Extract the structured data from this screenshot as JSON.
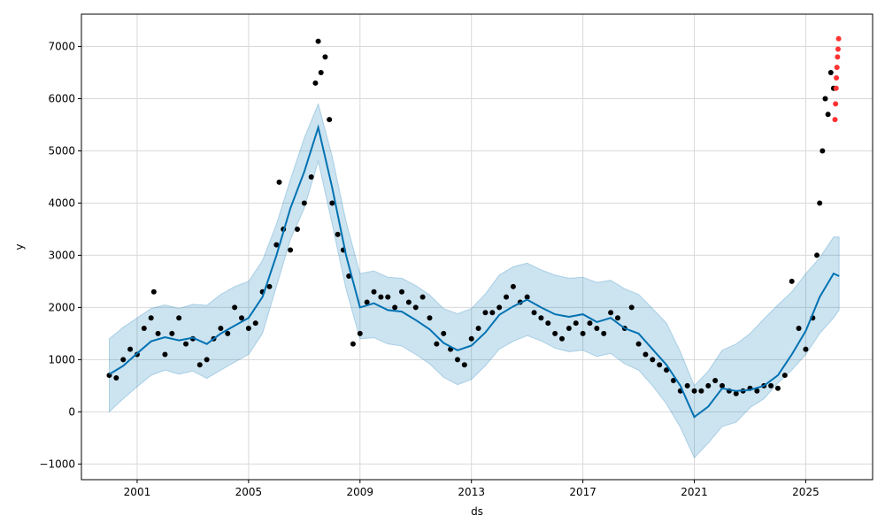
{
  "chart_data": {
    "type": "line",
    "title": "",
    "xlabel": "ds",
    "ylabel": "y",
    "xlim": [
      1999.0,
      2027.4
    ],
    "ylim": [
      -1300,
      7620
    ],
    "grid": true,
    "x_ticks": [
      2001,
      2005,
      2009,
      2013,
      2017,
      2021,
      2025
    ],
    "x_tick_labels": [
      "2001",
      "2005",
      "2009",
      "2013",
      "2017",
      "2021",
      "2025"
    ],
    "y_ticks": [
      -1000,
      0,
      1000,
      2000,
      3000,
      4000,
      5000,
      6000,
      7000
    ],
    "y_tick_labels": [
      "−1000",
      "0",
      "1000",
      "2000",
      "3000",
      "4000",
      "5000",
      "6000",
      "7000"
    ],
    "colors": {
      "forecast_line": "#0072B2",
      "uncertainty_band": "#0072B2",
      "observations": "#000000",
      "highlighted_points": "#ff3333",
      "grid": "#d9d9d9"
    },
    "series": [
      {
        "role": "forecast",
        "x": [
          2000.0,
          2000.5,
          2001.0,
          2001.5,
          2002.0,
          2002.5,
          2003.0,
          2003.5,
          2004.0,
          2004.5,
          2005.0,
          2005.5,
          2006.0,
          2006.5,
          2007.0,
          2007.5,
          2008.0,
          2008.5,
          2009.0,
          2009.5,
          2010.0,
          2010.5,
          2011.0,
          2011.5,
          2012.0,
          2012.5,
          2013.0,
          2013.5,
          2014.0,
          2014.5,
          2015.0,
          2015.5,
          2016.0,
          2016.5,
          2017.0,
          2017.5,
          2018.0,
          2018.5,
          2019.0,
          2019.5,
          2020.0,
          2020.5,
          2021.0,
          2021.5,
          2022.0,
          2022.5,
          2023.0,
          2023.5,
          2024.0,
          2024.5,
          2025.0,
          2025.5,
          2026.0,
          2026.2
        ],
        "y": [
          720,
          880,
          1120,
          1350,
          1430,
          1370,
          1420,
          1300,
          1500,
          1650,
          1800,
          2200,
          3000,
          3900,
          4600,
          5450,
          4300,
          3000,
          2000,
          2080,
          1950,
          1920,
          1760,
          1580,
          1320,
          1180,
          1270,
          1520,
          1860,
          2020,
          2150,
          2000,
          1870,
          1820,
          1870,
          1720,
          1800,
          1600,
          1500,
          1200,
          900,
          500,
          -100,
          100,
          450,
          400,
          420,
          500,
          700,
          1100,
          1550,
          2200,
          2650,
          2600
        ]
      },
      {
        "role": "uncertainty_upper",
        "x": [
          2000.0,
          2000.5,
          2001.0,
          2001.5,
          2002.0,
          2002.5,
          2003.0,
          2003.5,
          2004.0,
          2004.5,
          2005.0,
          2005.5,
          2006.0,
          2006.5,
          2007.0,
          2007.5,
          2008.0,
          2008.5,
          2009.0,
          2009.5,
          2010.0,
          2010.5,
          2011.0,
          2011.5,
          2012.0,
          2012.5,
          2013.0,
          2013.5,
          2014.0,
          2014.5,
          2015.0,
          2015.5,
          2016.0,
          2016.5,
          2017.0,
          2017.5,
          2018.0,
          2018.5,
          2019.0,
          2019.5,
          2020.0,
          2020.5,
          2021.0,
          2021.5,
          2022.0,
          2022.5,
          2023.0,
          2023.5,
          2024.0,
          2024.5,
          2025.0,
          2025.5,
          2026.0,
          2026.2
        ],
        "y": [
          1400,
          1620,
          1800,
          1980,
          2050,
          1980,
          2060,
          2040,
          2250,
          2400,
          2500,
          2900,
          3600,
          4450,
          5250,
          5900,
          4900,
          3650,
          2650,
          2700,
          2580,
          2560,
          2420,
          2240,
          1980,
          1880,
          1980,
          2260,
          2620,
          2780,
          2850,
          2720,
          2620,
          2560,
          2580,
          2480,
          2520,
          2360,
          2250,
          1980,
          1700,
          1150,
          500,
          780,
          1180,
          1300,
          1500,
          1780,
          2050,
          2300,
          2650,
          2950,
          3350,
          3350
        ]
      },
      {
        "role": "uncertainty_lower",
        "x": [
          2000.0,
          2000.5,
          2001.0,
          2001.5,
          2002.0,
          2002.5,
          2003.0,
          2003.5,
          2004.0,
          2004.5,
          2005.0,
          2005.5,
          2006.0,
          2006.5,
          2007.0,
          2007.5,
          2008.0,
          2008.5,
          2009.0,
          2009.5,
          2010.0,
          2010.5,
          2011.0,
          2011.5,
          2012.0,
          2012.5,
          2013.0,
          2013.5,
          2014.0,
          2014.5,
          2015.0,
          2015.5,
          2016.0,
          2016.5,
          2017.0,
          2017.5,
          2018.0,
          2018.5,
          2019.0,
          2019.5,
          2020.0,
          2020.5,
          2021.0,
          2021.5,
          2022.0,
          2022.5,
          2023.0,
          2023.5,
          2024.0,
          2024.5,
          2025.0,
          2025.5,
          2026.0,
          2026.2
        ],
        "y": [
          0,
          250,
          480,
          700,
          800,
          720,
          780,
          640,
          800,
          950,
          1100,
          1500,
          2400,
          3300,
          3900,
          4800,
          3600,
          2350,
          1400,
          1420,
          1300,
          1260,
          1100,
          920,
          660,
          520,
          620,
          880,
          1200,
          1350,
          1460,
          1360,
          1220,
          1150,
          1180,
          1060,
          1120,
          920,
          800,
          500,
          150,
          -300,
          -880,
          -600,
          -280,
          -200,
          80,
          250,
          550,
          800,
          1100,
          1500,
          1800,
          1950
        ]
      },
      {
        "role": "observations",
        "x": [
          2000.0,
          2000.25,
          2000.5,
          2000.75,
          2001.0,
          2001.25,
          2001.5,
          2001.6,
          2001.75,
          2002.0,
          2002.25,
          2002.5,
          2002.75,
          2003.0,
          2003.25,
          2003.5,
          2003.75,
          2004.0,
          2004.25,
          2004.5,
          2004.75,
          2005.0,
          2005.25,
          2005.5,
          2005.75,
          2006.0,
          2006.1,
          2006.25,
          2006.5,
          2006.75,
          2007.0,
          2007.25,
          2007.4,
          2007.5,
          2007.6,
          2007.75,
          2007.9,
          2008.0,
          2008.2,
          2008.4,
          2008.6,
          2008.75,
          2009.0,
          2009.25,
          2009.5,
          2009.75,
          2010.0,
          2010.25,
          2010.5,
          2010.75,
          2011.0,
          2011.25,
          2011.5,
          2011.75,
          2012.0,
          2012.25,
          2012.5,
          2012.75,
          2013.0,
          2013.25,
          2013.5,
          2013.75,
          2014.0,
          2014.25,
          2014.5,
          2014.75,
          2015.0,
          2015.25,
          2015.5,
          2015.75,
          2016.0,
          2016.25,
          2016.5,
          2016.75,
          2017.0,
          2017.25,
          2017.5,
          2017.75,
          2018.0,
          2018.25,
          2018.5,
          2018.75,
          2019.0,
          2019.25,
          2019.5,
          2019.75,
          2020.0,
          2020.25,
          2020.5,
          2020.75,
          2021.0,
          2021.25,
          2021.5,
          2021.75,
          2022.0,
          2022.25,
          2022.5,
          2022.75,
          2023.0,
          2023.25,
          2023.5,
          2023.75,
          2024.0,
          2024.25,
          2024.5,
          2024.75,
          2025.0,
          2025.25,
          2025.4,
          2025.5,
          2025.6,
          2025.7,
          2025.8,
          2025.9,
          2026.0
        ],
        "y": [
          700,
          650,
          1000,
          1200,
          1100,
          1600,
          1800,
          2300,
          1500,
          1100,
          1500,
          1800,
          1300,
          1400,
          900,
          1000,
          1400,
          1600,
          1500,
          2000,
          1800,
          1600,
          1700,
          2300,
          2400,
          3200,
          4400,
          3500,
          3100,
          3500,
          4000,
          4500,
          6300,
          7100,
          6500,
          6800,
          5600,
          4000,
          3400,
          3100,
          2600,
          1300,
          1500,
          2100,
          2300,
          2200,
          2200,
          2000,
          2300,
          2100,
          2000,
          2200,
          1800,
          1300,
          1500,
          1200,
          1000,
          900,
          1400,
          1600,
          1900,
          1900,
          2000,
          2200,
          2400,
          2100,
          2200,
          1900,
          1800,
          1700,
          1500,
          1400,
          1600,
          1700,
          1500,
          1700,
          1600,
          1500,
          1900,
          1800,
          1600,
          2000,
          1300,
          1100,
          1000,
          900,
          800,
          600,
          400,
          500,
          400,
          400,
          500,
          600,
          500,
          400,
          350,
          400,
          450,
          400,
          500,
          500,
          450,
          700,
          2500,
          1600,
          1200,
          1800,
          3000,
          4000,
          5000,
          6000,
          5700,
          6500,
          6200
        ]
      },
      {
        "role": "highlighted",
        "x": [
          2026.05,
          2026.07,
          2026.09,
          2026.1,
          2026.12,
          2026.14,
          2026.16,
          2026.18
        ],
        "y": [
          5600,
          5900,
          6200,
          6400,
          6600,
          6800,
          6950,
          7150
        ]
      }
    ]
  }
}
